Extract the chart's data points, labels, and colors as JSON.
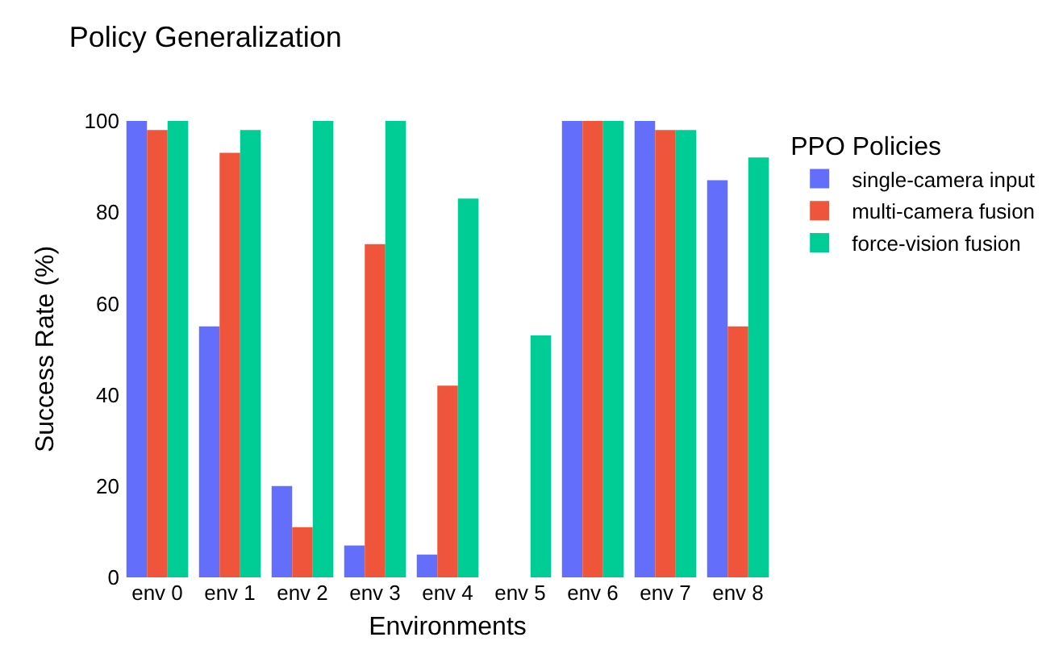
{
  "chart_data": {
    "type": "bar",
    "title": "Policy Generalization",
    "xlabel": "Environments",
    "ylabel": "Success Rate (%)",
    "legend_title": "PPO Policies",
    "categories": [
      "env 0",
      "env 1",
      "env 2",
      "env 3",
      "env 4",
      "env 5",
      "env 6",
      "env 7",
      "env 8"
    ],
    "series": [
      {
        "name": "single-camera input",
        "color": "#636efa",
        "values": [
          100,
          55,
          20,
          7,
          5,
          0,
          100,
          100,
          87
        ]
      },
      {
        "name": "multi-camera fusion",
        "color": "#ef553b",
        "values": [
          98,
          93,
          11,
          73,
          42,
          0,
          100,
          98,
          55
        ]
      },
      {
        "name": "force-vision fusion",
        "color": "#00cc96",
        "values": [
          100,
          98,
          100,
          100,
          83,
          53,
          100,
          98,
          92
        ]
      }
    ],
    "ylim": [
      0,
      100
    ],
    "yticks": [
      0,
      20,
      40,
      60,
      80,
      100
    ],
    "grid": false,
    "legend": "top right"
  }
}
